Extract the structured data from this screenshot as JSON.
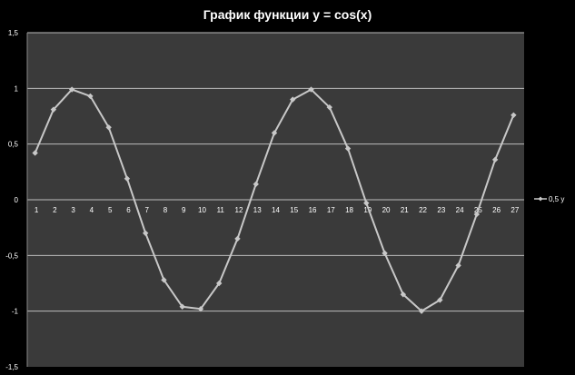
{
  "chart_data": {
    "type": "line",
    "title": "График функции y = cos(x)",
    "xlabel": "",
    "ylabel": "",
    "categories": [
      "1",
      "2",
      "3",
      "4",
      "5",
      "6",
      "7",
      "8",
      "9",
      "10",
      "11",
      "12",
      "13",
      "14",
      "15",
      "16",
      "17",
      "18",
      "19",
      "20",
      "21",
      "22",
      "23",
      "24",
      "25",
      "26",
      "27"
    ],
    "series": [
      {
        "name": "0,5 y",
        "values": [
          0.42,
          0.81,
          0.99,
          0.93,
          0.65,
          0.19,
          -0.3,
          -0.72,
          -0.96,
          -0.98,
          -0.75,
          -0.35,
          0.14,
          0.6,
          0.9,
          0.99,
          0.83,
          0.46,
          -0.03,
          -0.48,
          -0.85,
          -1.0,
          -0.9,
          -0.59,
          -0.13,
          0.36,
          0.76
        ]
      }
    ],
    "ylim": [
      -1.5,
      1.5
    ],
    "yticks": [
      1.5,
      1,
      0.5,
      0,
      -0.5,
      -1,
      -1.5
    ],
    "ytick_labels": [
      "1,5",
      "1",
      "0,5",
      "0",
      "-0,5",
      "-1",
      "-1,5"
    ],
    "grid": true,
    "legend_position": "right",
    "colors": {
      "background": "#000000",
      "plot_area": "#3a3a3a",
      "gridline": "#bdbdbd",
      "series": "#c8c8c8",
      "text": "#ffffff"
    }
  }
}
